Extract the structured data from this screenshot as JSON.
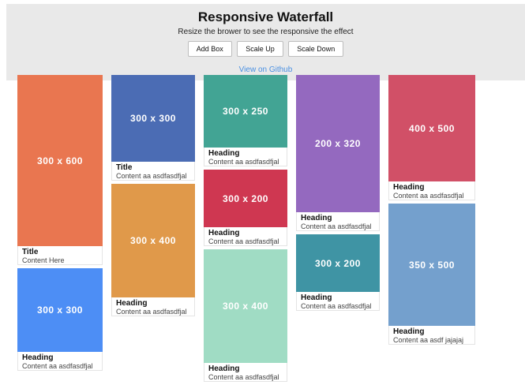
{
  "header": {
    "title": "Responsive Waterfall",
    "subtitle": "Resize the brower to see the responsive the effect",
    "buttons": [
      {
        "label": "Add Box"
      },
      {
        "label": "Scale Up"
      },
      {
        "label": "Scale Down"
      }
    ],
    "link": "View on Github",
    "link_color": "#4a90e2",
    "background": "#e9e9e9"
  },
  "waterfall": {
    "columns": [
      {
        "cards": [
          {
            "size_label": "300 x 600",
            "color": "#e97650",
            "title": "Title",
            "content": "Content Here"
          },
          {
            "size_label": "300 x 300",
            "color": "#4d8ef5",
            "title": "Heading",
            "content": "Content aa asdfasdfjal"
          }
        ]
      },
      {
        "cards": [
          {
            "size_label": "300 x 300",
            "color": "#4b6cb4",
            "title": "Title",
            "content": "Content aa asdfasdfjal"
          },
          {
            "size_label": "300 x 400",
            "color": "#e0994a",
            "title": "Heading",
            "content": "Content aa asdfasdfjal"
          }
        ]
      },
      {
        "cards": [
          {
            "size_label": "300 x 250",
            "color": "#42a494",
            "title": "Heading",
            "content": "Content aa asdfasdfjal"
          },
          {
            "size_label": "300 x 200",
            "color": "#cf3751",
            "title": "Heading",
            "content": "Content aa asdfasdfjal"
          },
          {
            "size_label": "300 x 400",
            "color": "#a0dcc4",
            "title": "Heading",
            "content": "Content aa asdfasdfjal"
          }
        ]
      },
      {
        "cards": [
          {
            "size_label": "200 x 320",
            "color": "#9469bf",
            "title": "Heading",
            "content": "Content aa asdfasdfjal"
          },
          {
            "size_label": "300 x 200",
            "color": "#3f94a4",
            "title": "Heading",
            "content": "Content aa asdfasdfjal"
          }
        ]
      },
      {
        "cards": [
          {
            "size_label": "400 x 500",
            "color": "#d15067",
            "title": "Heading",
            "content": "Content aa asdfasdfjal"
          },
          {
            "size_label": "350 x 500",
            "color": "#74a0cd",
            "title": "Heading",
            "content": "Content aa asdf jajajaj"
          }
        ]
      }
    ]
  }
}
